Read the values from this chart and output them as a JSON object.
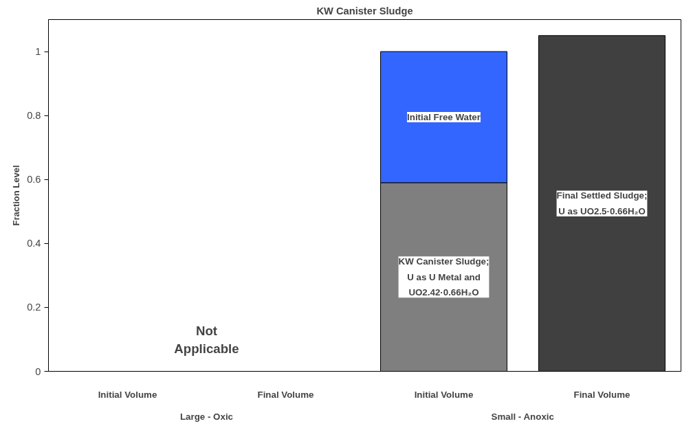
{
  "chart_data": {
    "type": "bar",
    "title": "KW Canister Sludge",
    "ylabel": "Fraction Level",
    "categories": [
      "Initial Volume",
      "Final Volume",
      "Initial Volume",
      "Final Volume"
    ],
    "stacked": true,
    "series": [
      {
        "name": "KW Canister Sludge;\nU as U Metal and\nUO2.42·0.66H₂O",
        "color": "#7f7f7f",
        "values": [
          null,
          null,
          0.59,
          null
        ]
      },
      {
        "name": "Initial Free Water",
        "color": "#3366ff",
        "values": [
          null,
          null,
          0.41,
          null
        ]
      },
      {
        "name": "Final Settled Sludge;\nU as UO2.5·0.66H₂O",
        "color": "#404040",
        "values": [
          null,
          null,
          null,
          1.05
        ]
      }
    ],
    "ylim": [
      0,
      1.1
    ],
    "yticks": [
      0,
      0.2,
      0.4,
      0.6,
      0.8,
      1
    ],
    "annotations": [
      "Large - Oxic",
      "Small - Anoxic",
      "Not\nApplicable"
    ],
    "grid": false,
    "legend": false
  }
}
